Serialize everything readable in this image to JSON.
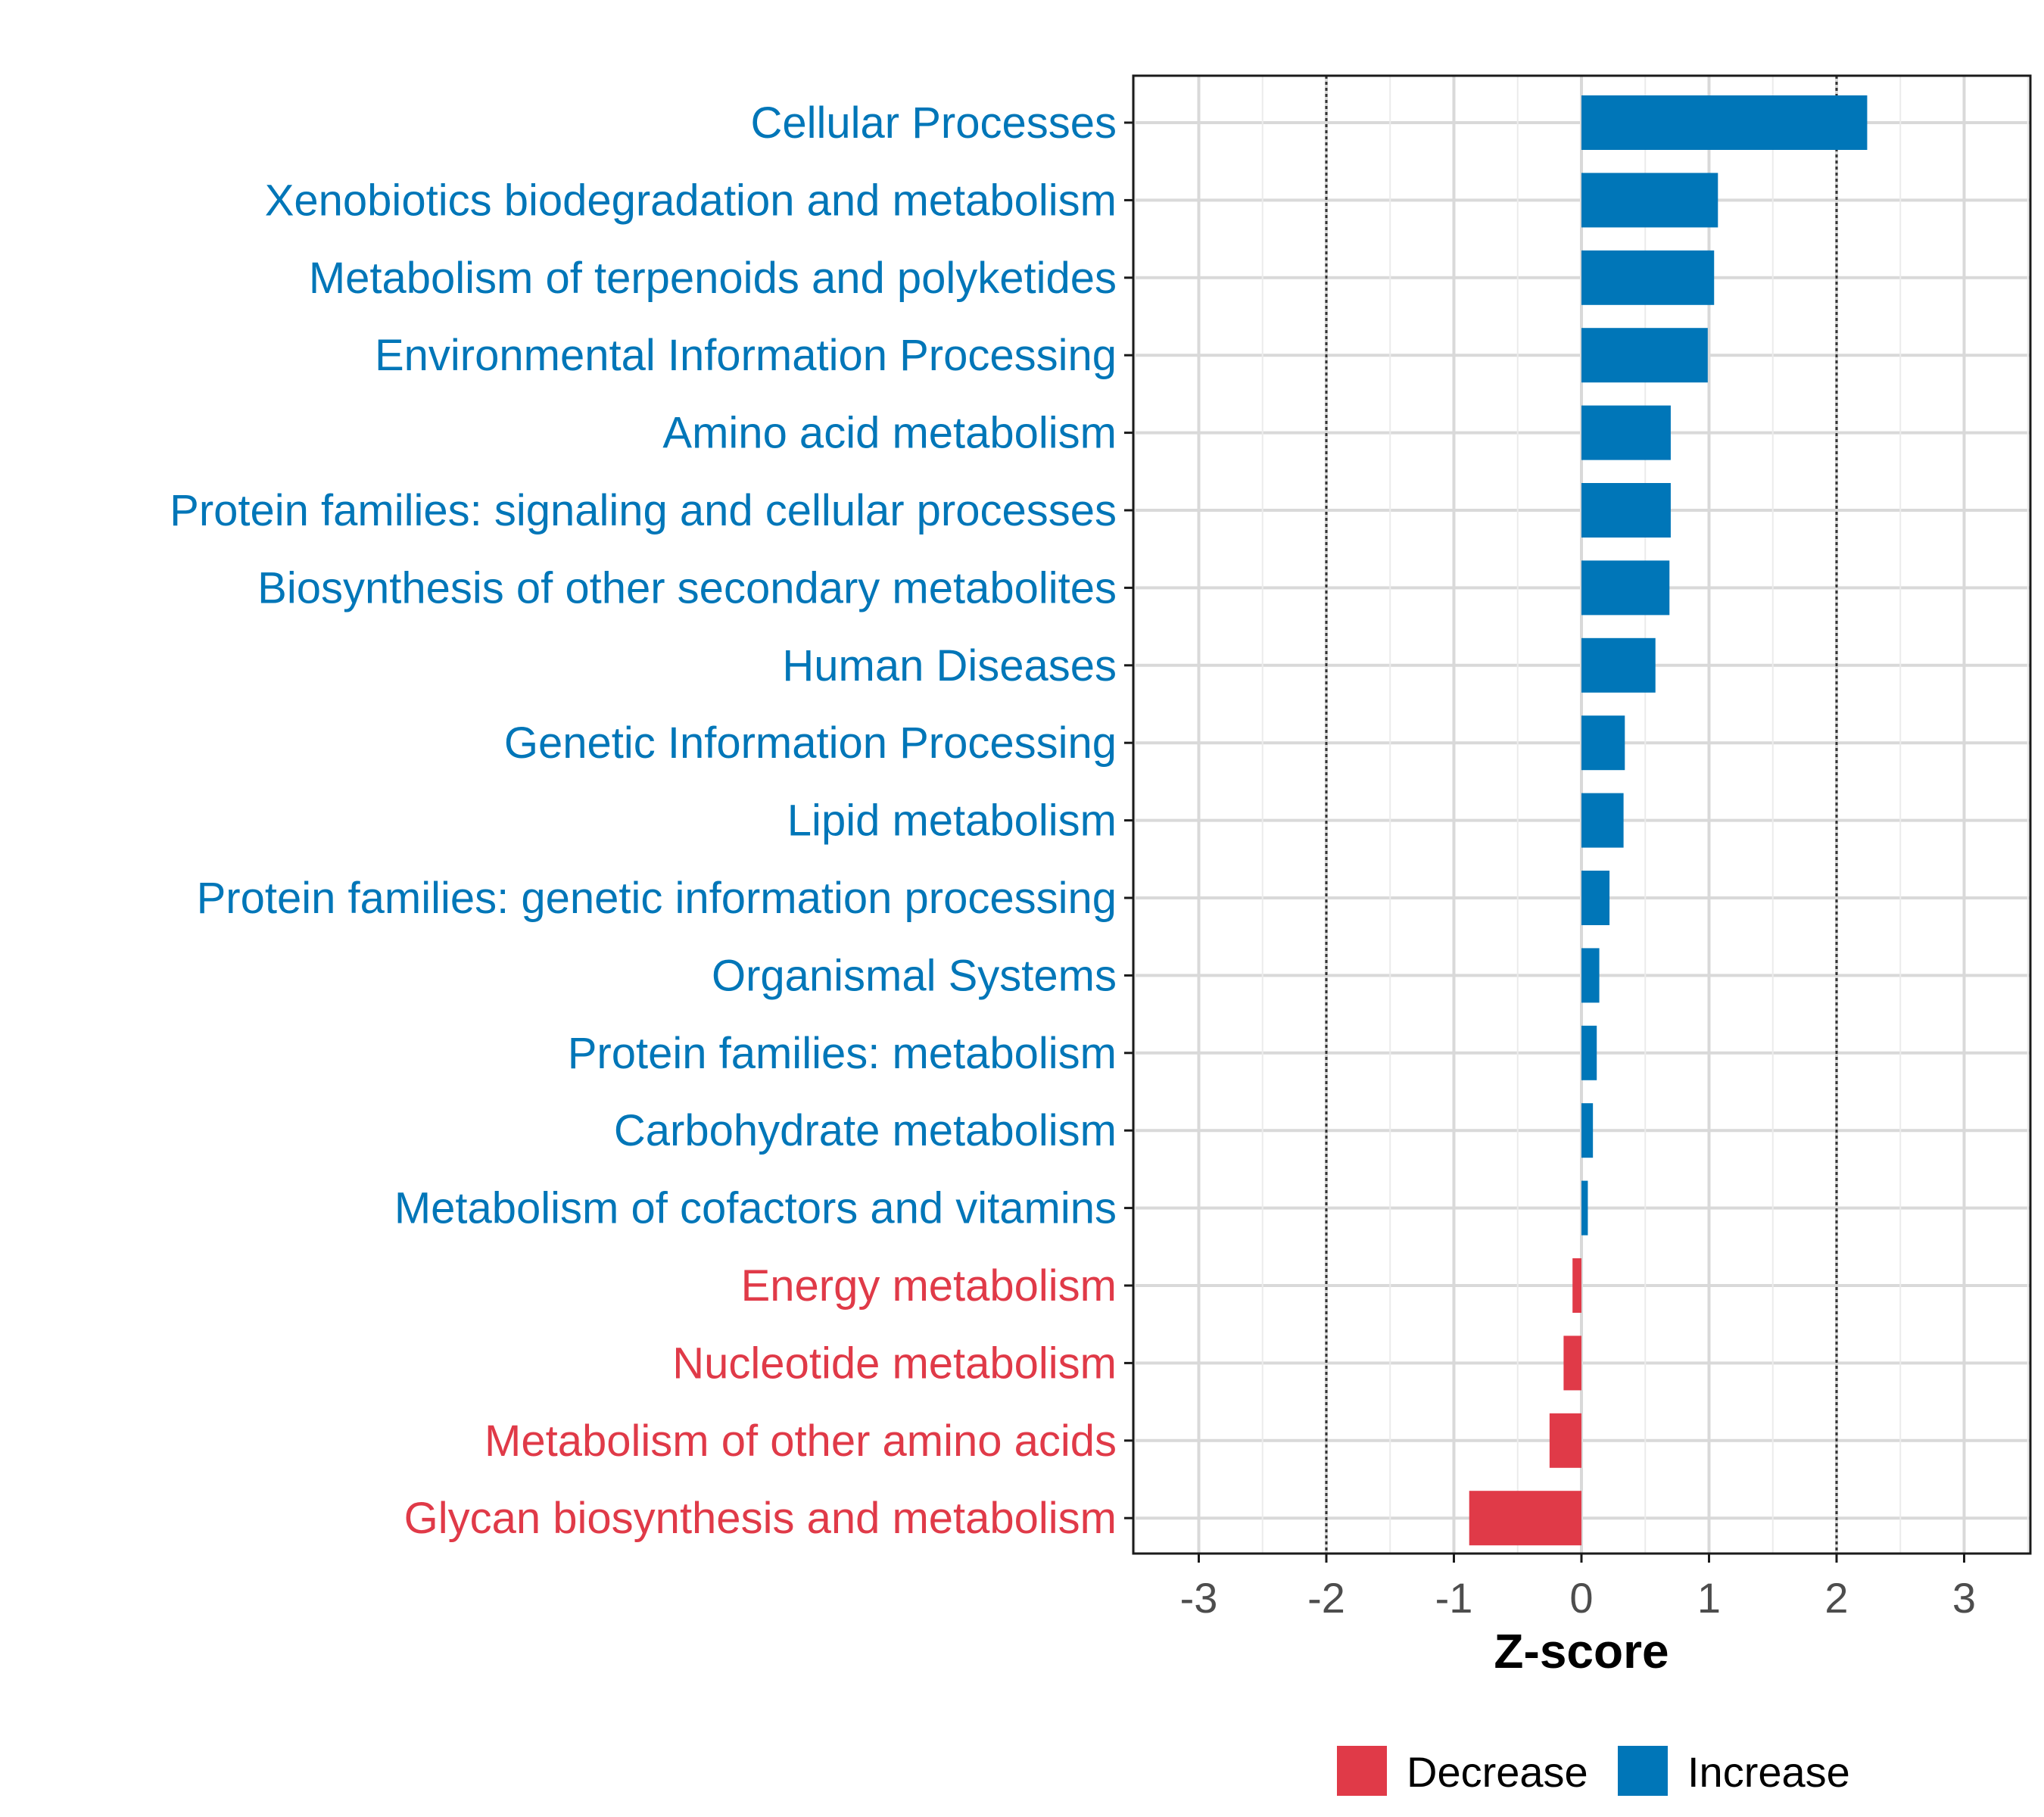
{
  "chart_data": {
    "type": "bar",
    "orientation": "horizontal",
    "xlabel": "Z-score",
    "ylabel": "",
    "xlim": [
      -3.5,
      3.5
    ],
    "ticks": [
      -3,
      -2,
      -1,
      0,
      1,
      2,
      3
    ],
    "reference_lines": [
      -2,
      2
    ],
    "grid": true,
    "legend_position": "bottom",
    "colors": {
      "Decrease": "#E03A48",
      "Increase": "#0076B8"
    },
    "legend": [
      {
        "name": "Decrease",
        "color": "#E03A48"
      },
      {
        "name": "Increase",
        "color": "#0076B8"
      }
    ],
    "categories": [
      "Cellular Processes",
      "Xenobiotics biodegradation and metabolism",
      "Metabolism of terpenoids and polyketides",
      "Environmental Information Processing",
      "Amino acid metabolism",
      "Protein families: signaling and cellular processes",
      "Biosynthesis of other secondary metabolites",
      "Human Diseases",
      "Genetic Information Processing",
      "Lipid metabolism",
      "Protein families: genetic information processing",
      "Organismal Systems",
      "Protein families: metabolism",
      "Carbohydrate metabolism",
      "Metabolism of cofactors and vitamins",
      "Energy metabolism",
      "Nucleotide metabolism",
      "Metabolism of other amino acids",
      "Glycan biosynthesis and metabolism"
    ],
    "values": [
      2.24,
      1.07,
      1.04,
      0.99,
      0.7,
      0.7,
      0.69,
      0.58,
      0.34,
      0.33,
      0.22,
      0.14,
      0.12,
      0.09,
      0.05,
      -0.07,
      -0.14,
      -0.25,
      -0.88
    ],
    "groups": [
      "Increase",
      "Increase",
      "Increase",
      "Increase",
      "Increase",
      "Increase",
      "Increase",
      "Increase",
      "Increase",
      "Increase",
      "Increase",
      "Increase",
      "Increase",
      "Increase",
      "Increase",
      "Decrease",
      "Decrease",
      "Decrease",
      "Decrease"
    ]
  }
}
